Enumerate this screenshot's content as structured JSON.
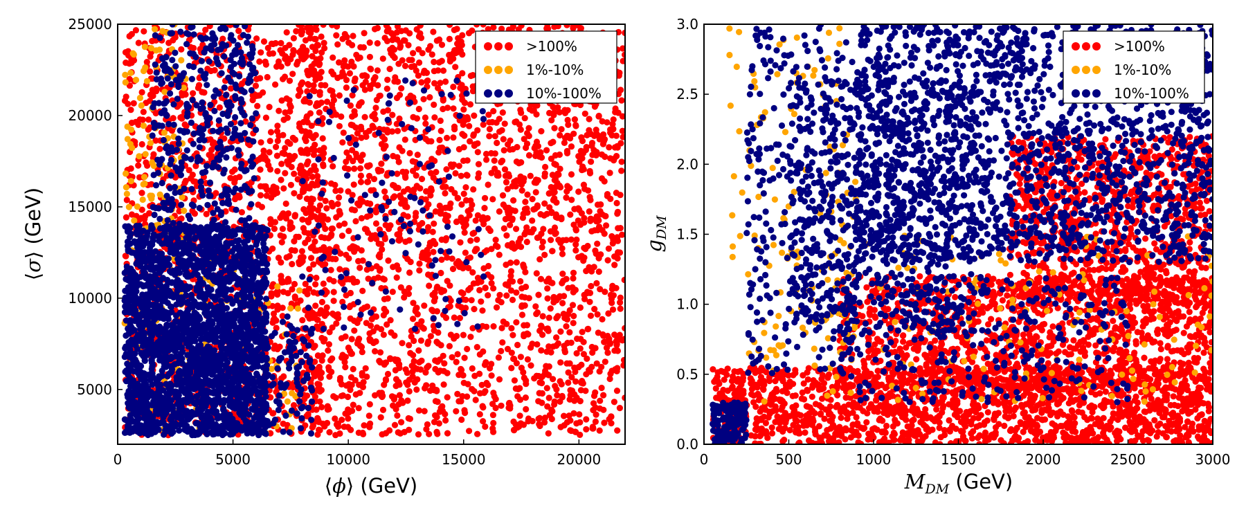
{
  "chart_data": [
    {
      "type": "scatter",
      "id": "left",
      "xlabel": {
        "open": "⟨",
        "symbol": "ϕ",
        "close": "⟩",
        "unit": " (GeV)"
      },
      "ylabel": {
        "open": "⟨",
        "symbol": "σ",
        "close": "⟩",
        "unit": " (GeV)"
      },
      "xlim": [
        0,
        22000
      ],
      "ylim": [
        2000,
        25000
      ],
      "xticks": [
        0,
        5000,
        10000,
        15000,
        20000
      ],
      "yticks": [
        5000,
        10000,
        15000,
        20000,
        25000
      ],
      "xtick_labels": [
        "0",
        "5000",
        "10000",
        "15000",
        "20000"
      ],
      "ytick_labels": [
        "5000",
        "10000",
        "15000",
        "20000",
        "25000"
      ],
      "legend_position": "top-right",
      "series": [
        {
          "name": ">100%",
          "color": "#ff0000",
          "count": 3600,
          "regions": [
            {
              "x": [
                8000,
                22000
              ],
              "y": [
                2500,
                25000
              ],
              "weight": 0.62
            },
            {
              "x": [
                300,
                9000
              ],
              "y": [
                2500,
                25000
              ],
              "weight": 0.38
            }
          ]
        },
        {
          "name": "1%-10%",
          "color": "#ffa500",
          "count": 220,
          "regions": [
            {
              "x": [
                300,
                3000
              ],
              "y": [
                2500,
                25000
              ],
              "weight": 0.7
            },
            {
              "x": [
                3000,
                8000
              ],
              "y": [
                2500,
                12000
              ],
              "weight": 0.3
            }
          ]
        },
        {
          "name": "10%-100%",
          "color": "#000080",
          "count": 3000,
          "regions": [
            {
              "x": [
                300,
                6500
              ],
              "y": [
                2500,
                14000
              ],
              "weight": 0.72
            },
            {
              "x": [
                500,
                8500
              ],
              "y": [
                2500,
                9000
              ],
              "weight": 0.12
            },
            {
              "x": [
                1500,
                6000
              ],
              "y": [
                14000,
                25000
              ],
              "weight": 0.12
            },
            {
              "x": [
                8000,
                16000
              ],
              "y": [
                8000,
                22000
              ],
              "weight": 0.04
            }
          ]
        }
      ]
    },
    {
      "type": "scatter",
      "id": "right",
      "xlabel": {
        "symbol": "M",
        "sub": "DM",
        "unit": " (GeV)"
      },
      "ylabel": {
        "symbol": "g",
        "sub": "DM"
      },
      "xlim": [
        0,
        3000
      ],
      "ylim": [
        0,
        3
      ],
      "xticks": [
        0,
        500,
        1000,
        1500,
        2000,
        2500,
        3000
      ],
      "yticks": [
        0,
        0.5,
        1.0,
        1.5,
        2.0,
        2.5,
        3.0
      ],
      "xtick_labels": [
        "0",
        "500",
        "1000",
        "1500",
        "2000",
        "2500",
        "3000"
      ],
      "ytick_labels": [
        "0.0",
        "0.5",
        "1.0",
        "1.5",
        "2.0",
        "2.5",
        "3.0"
      ],
      "legend_position": "top-right",
      "series": [
        {
          "name": ">100%",
          "color": "#ff0000",
          "count": 3800,
          "regions": [
            {
              "x": [
                50,
                3000
              ],
              "y": [
                0,
                0.55
              ],
              "weight": 0.45
            },
            {
              "x": [
                800,
                3000
              ],
              "y": [
                0.4,
                1.2
              ],
              "weight": 0.3
            },
            {
              "x": [
                1800,
                3000
              ],
              "y": [
                1.0,
                2.2
              ],
              "weight": 0.25
            }
          ]
        },
        {
          "name": "1%-10%",
          "color": "#ffa500",
          "count": 260,
          "regions": [
            {
              "x": [
                150,
                900
              ],
              "y": [
                0.6,
                3.0
              ],
              "weight": 0.4
            },
            {
              "x": [
                300,
                3000
              ],
              "y": [
                0.3,
                1.5
              ],
              "weight": 0.6
            }
          ]
        },
        {
          "name": "10%-100%",
          "color": "#000080",
          "count": 3000,
          "regions": [
            {
              "x": [
                900,
                3000
              ],
              "y": [
                1.3,
                3.0
              ],
              "weight": 0.55
            },
            {
              "x": [
                500,
                1600
              ],
              "y": [
                0.8,
                2.6
              ],
              "weight": 0.2
            },
            {
              "x": [
                250,
                900
              ],
              "y": [
                0.5,
                3.0
              ],
              "weight": 0.1
            },
            {
              "x": [
                800,
                2500
              ],
              "y": [
                0.3,
                1.2
              ],
              "weight": 0.1
            },
            {
              "x": [
                50,
                250
              ],
              "y": [
                0,
                0.3
              ],
              "weight": 0.05
            }
          ]
        }
      ]
    }
  ]
}
